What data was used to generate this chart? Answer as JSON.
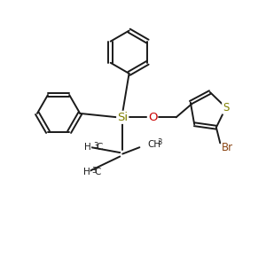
{
  "bg_color": "#ffffff",
  "bond_color": "#1a1a1a",
  "si_color": "#808000",
  "o_color": "#cc0000",
  "s_color": "#808000",
  "br_color": "#8B4513",
  "text_color": "#1a1a1a",
  "line_width": 1.4,
  "font_size": 8.5,
  "sub_font_size": 6.0,
  "xlim": [
    0,
    10
  ],
  "ylim": [
    0,
    10
  ]
}
